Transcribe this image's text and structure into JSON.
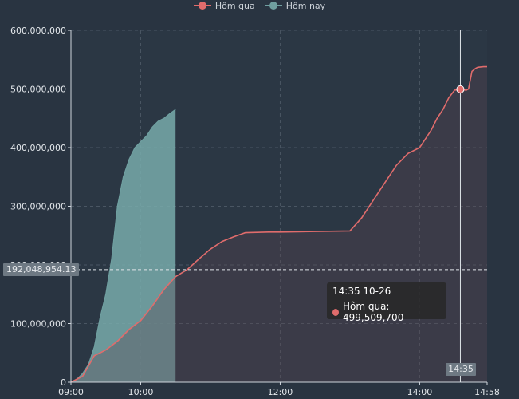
{
  "chart_data": {
    "type": "area",
    "x_ticks": [
      "09:00",
      "10:00",
      "12:00",
      "14:00",
      "14:58"
    ],
    "y_ticks": [
      "0",
      "100,000,000",
      "200,000,000",
      "300,000,000",
      "400,000,000",
      "500,000,000",
      "600,000,000"
    ],
    "ylim": [
      0,
      600000000
    ],
    "xlim": [
      "09:00",
      "14:58"
    ],
    "grid": true,
    "legend_position": "top-center",
    "series": [
      {
        "name": "Hôm qua",
        "color": "#e06c6c",
        "x": [
          "09:00",
          "09:10",
          "09:20",
          "09:30",
          "09:40",
          "09:50",
          "10:00",
          "10:10",
          "10:20",
          "10:30",
          "10:40",
          "10:50",
          "11:00",
          "11:10",
          "11:20",
          "11:30",
          "11:40",
          "11:50",
          "12:00",
          "12:30",
          "13:00",
          "13:10",
          "13:20",
          "13:30",
          "13:40",
          "13:50",
          "14:00",
          "14:10",
          "14:15",
          "14:20",
          "14:25",
          "14:30",
          "14:35",
          "14:40",
          "14:42",
          "14:45",
          "14:48",
          "14:50",
          "14:55",
          "14:58"
        ],
        "values": [
          0,
          10000000,
          45000000,
          55000000,
          70000000,
          90000000,
          105000000,
          130000000,
          158000000,
          180000000,
          192048954,
          210000000,
          227000000,
          240000000,
          248000000,
          255000000,
          255500000,
          256000000,
          256000000,
          257000000,
          258000000,
          280000000,
          310000000,
          340000000,
          370000000,
          390000000,
          400000000,
          430000000,
          450000000,
          465000000,
          485000000,
          498000000,
          499509700,
          498000000,
          500000000,
          530000000,
          535000000,
          537000000,
          538000000,
          538000000
        ]
      },
      {
        "name": "Hôm nay",
        "color": "#6f9fa0",
        "x": [
          "09:00",
          "09:05",
          "09:10",
          "09:15",
          "09:20",
          "09:25",
          "09:30",
          "09:35",
          "09:40",
          "09:45",
          "09:50",
          "09:55",
          "10:00",
          "10:05",
          "10:10",
          "10:15",
          "10:20",
          "10:25",
          "10:30"
        ],
        "values": [
          0,
          5000000,
          15000000,
          30000000,
          60000000,
          110000000,
          150000000,
          210000000,
          300000000,
          350000000,
          380000000,
          400000000,
          410000000,
          420000000,
          435000000,
          445000000,
          450000000,
          458000000,
          465000000
        ]
      }
    ],
    "crosshair": {
      "x": "14:35",
      "y": 192048954.13,
      "y_label": "192,048,954.13",
      "x_label": "14:35"
    },
    "tooltip": {
      "title": "14:35 10-26",
      "series": "Hôm qua",
      "value": "499,509,700"
    }
  },
  "legend": [
    {
      "label": "Hôm qua",
      "color": "#e06c6c"
    },
    {
      "label": "Hôm nay",
      "color": "#6f9fa0"
    }
  ],
  "tooltip": {
    "title": "14:35 10-26",
    "line": "Hôm qua: 499,509,700",
    "dot_color": "#e06c6c"
  },
  "crosshair_labels": {
    "y": "192,048,954.13",
    "x": "14:35"
  }
}
